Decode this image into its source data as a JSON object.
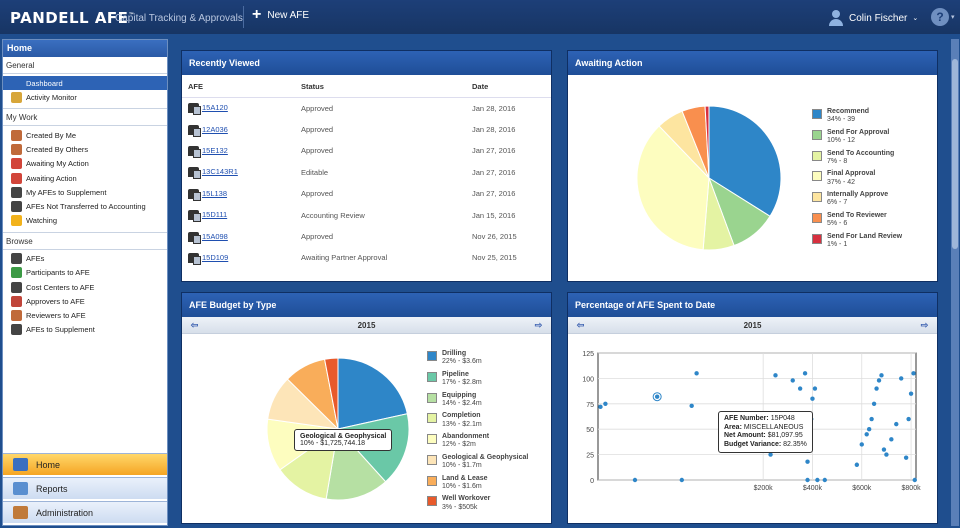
{
  "topbar": {
    "brand": "PANDELL AFE",
    "tm": "™",
    "subtitle": "Capital Tracking & Approvals",
    "new_afe": "New AFE",
    "user": "Colin Fischer",
    "help": "?"
  },
  "sidebar": {
    "title": "Home",
    "general_label": "General",
    "general": [
      {
        "label": "Dashboard",
        "icon": "dashboard-icon",
        "color": "#2d63b5"
      },
      {
        "label": "Activity Monitor",
        "icon": "activity-monitor-icon",
        "color": "#d7a63a"
      }
    ],
    "mywork_label": "My Work",
    "mywork": [
      {
        "label": "Created By Me",
        "icon": "user-icon",
        "color": "#c06a3a"
      },
      {
        "label": "Created By Others",
        "icon": "users-icon",
        "color": "#c06a3a"
      },
      {
        "label": "Awaiting My Action",
        "icon": "clock-icon",
        "color": "#d2453a"
      },
      {
        "label": "Awaiting Action",
        "icon": "clock-icon",
        "color": "#d2453a"
      },
      {
        "label": "My AFEs to Supplement",
        "icon": "afe-document-icon",
        "color": "#444"
      },
      {
        "label": "AFEs Not Transferred to Accounting",
        "icon": "afe-document-icon",
        "color": "#444"
      },
      {
        "label": "Watching",
        "icon": "star-icon",
        "color": "#f2b21b"
      }
    ],
    "browse_label": "Browse",
    "browse": [
      {
        "label": "AFEs",
        "icon": "afe-document-icon",
        "color": "#444"
      },
      {
        "label": "Participants to AFE",
        "icon": "participant-icon",
        "color": "#3c9a45"
      },
      {
        "label": "Cost Centers to AFE",
        "icon": "cost-center-icon",
        "color": "#444"
      },
      {
        "label": "Approvers to AFE",
        "icon": "approver-icon",
        "color": "#c0453a"
      },
      {
        "label": "Reviewers to AFE",
        "icon": "reviewer-icon",
        "color": "#c06a3a"
      },
      {
        "label": "AFEs to Supplement",
        "icon": "afe-document-icon",
        "color": "#444"
      }
    ],
    "nav": [
      {
        "label": "Home",
        "icon": "home-icon",
        "active": true
      },
      {
        "label": "Reports",
        "icon": "reports-icon",
        "active": false
      },
      {
        "label": "Administration",
        "icon": "administration-icon",
        "active": false
      }
    ]
  },
  "recent": {
    "title": "Recently Viewed",
    "headers": [
      "AFE",
      "Status",
      "Date"
    ],
    "rows": [
      {
        "afe": "15A120",
        "status": "Approved",
        "date": "Jan 28, 2016"
      },
      {
        "afe": "12A036",
        "status": "Approved",
        "date": "Jan 28, 2016"
      },
      {
        "afe": "15E132",
        "status": "Approved",
        "date": "Jan 27, 2016"
      },
      {
        "afe": "13C143R1",
        "status": "Editable",
        "date": "Jan 27, 2016"
      },
      {
        "afe": "15L138",
        "status": "Approved",
        "date": "Jan 27, 2016"
      },
      {
        "afe": "15D111",
        "status": "Accounting Review",
        "date": "Jan 15, 2016"
      },
      {
        "afe": "15A098",
        "status": "Approved",
        "date": "Nov 26, 2015"
      },
      {
        "afe": "15D109",
        "status": "Awaiting Partner Approval",
        "date": "Nov 25, 2015"
      }
    ]
  },
  "awaiting": {
    "title": "Awaiting Action"
  },
  "budget": {
    "title": "AFE Budget by Type",
    "year": "2015",
    "tooltip_title": "Geological & Geophysical",
    "tooltip_value": "10% - $1,725,744.18"
  },
  "percent": {
    "title": "Percentage of AFE Spent to Date",
    "year": "2015",
    "tooltip": {
      "afe_label": "AFE Number:",
      "afe_value": "15P048",
      "area_label": "Area:",
      "area_value": "MISCELLANEOUS",
      "net_label": "Net Amount:",
      "net_value": "$81,097.95",
      "var_label": "Budget Variance:",
      "var_value": "82.35%"
    }
  },
  "chart_data": [
    {
      "type": "pie",
      "title": "Awaiting Action",
      "slices": [
        {
          "name": "Recommend",
          "label": "34% - 39",
          "value": 39,
          "pct": 34,
          "color": "#2e86c8"
        },
        {
          "name": "Send For Approval",
          "label": "10% - 12",
          "value": 12,
          "pct": 10,
          "color": "#9ad48f"
        },
        {
          "name": "Send To Accounting",
          "label": "7% - 8",
          "value": 8,
          "pct": 7,
          "color": "#e4f3a3"
        },
        {
          "name": "Final Approval",
          "label": "37% - 42",
          "value": 42,
          "pct": 37,
          "color": "#fdfdbf"
        },
        {
          "name": "Internally Approve",
          "label": "6% - 7",
          "value": 7,
          "pct": 6,
          "color": "#fde5a0"
        },
        {
          "name": "Send To Reviewer",
          "label": "5% - 6",
          "value": 6,
          "pct": 5,
          "color": "#f98f4e"
        },
        {
          "name": "Send For Land Review",
          "label": "1% - 1",
          "value": 1,
          "pct": 1,
          "color": "#d7303f"
        }
      ]
    },
    {
      "type": "pie",
      "title": "AFE Budget by Type",
      "slices": [
        {
          "name": "Drilling",
          "label": "22% - $3.6m",
          "value": 3.6,
          "pct": 22,
          "color": "#2e86c8"
        },
        {
          "name": "Pipeline",
          "label": "17% - $2.8m",
          "value": 2.8,
          "pct": 17,
          "color": "#6ac8a7"
        },
        {
          "name": "Equipping",
          "label": "14% - $2.4m",
          "value": 2.4,
          "pct": 14,
          "color": "#b6e0a3"
        },
        {
          "name": "Completion",
          "label": "13% - $2.1m",
          "value": 2.1,
          "pct": 13,
          "color": "#e4f3a3"
        },
        {
          "name": "Abandonment",
          "label": "12% - $2m",
          "value": 2,
          "pct": 12,
          "color": "#fdfdbf"
        },
        {
          "name": "Geological & Geophysical",
          "label": "10% - $1.7m",
          "value": 1.7,
          "pct": 10,
          "color": "#fde5b8"
        },
        {
          "name": "Land & Lease",
          "label": "10% - $1.6m",
          "value": 1.6,
          "pct": 10,
          "color": "#f9ad5a"
        },
        {
          "name": "Well Workover",
          "label": "3% - $505k",
          "value": 0.505,
          "pct": 3,
          "color": "#e85a2b"
        }
      ]
    },
    {
      "type": "scatter",
      "title": "Percentage of AFE Spent to Date",
      "yticks": [
        "0",
        "25",
        "50",
        "75",
        "100",
        "125"
      ],
      "xticks": [
        "$200k",
        "$400k",
        "$600k",
        "$800k"
      ],
      "ylim": [
        0,
        125
      ],
      "xlim": [
        -470,
        820
      ],
      "points": [
        {
          "x": -460,
          "y": 72
        },
        {
          "x": -440,
          "y": 75
        },
        {
          "x": -320,
          "y": 0
        },
        {
          "x": -230,
          "y": 82
        },
        {
          "x": -130,
          "y": 0
        },
        {
          "x": -90,
          "y": 73
        },
        {
          "x": -70,
          "y": 105
        },
        {
          "x": 230,
          "y": 25
        },
        {
          "x": 250,
          "y": 103
        },
        {
          "x": 320,
          "y": 98
        },
        {
          "x": 350,
          "y": 90
        },
        {
          "x": 370,
          "y": 105
        },
        {
          "x": 380,
          "y": 0
        },
        {
          "x": 380,
          "y": 18
        },
        {
          "x": 390,
          "y": 38
        },
        {
          "x": 395,
          "y": 60
        },
        {
          "x": 400,
          "y": 80
        },
        {
          "x": 410,
          "y": 90
        },
        {
          "x": 420,
          "y": 0
        },
        {
          "x": 450,
          "y": 0
        },
        {
          "x": 580,
          "y": 15
        },
        {
          "x": 600,
          "y": 35
        },
        {
          "x": 620,
          "y": 45
        },
        {
          "x": 630,
          "y": 50
        },
        {
          "x": 640,
          "y": 60
        },
        {
          "x": 650,
          "y": 75
        },
        {
          "x": 660,
          "y": 90
        },
        {
          "x": 670,
          "y": 98
        },
        {
          "x": 680,
          "y": 103
        },
        {
          "x": 690,
          "y": 30
        },
        {
          "x": 700,
          "y": 25
        },
        {
          "x": 720,
          "y": 40
        },
        {
          "x": 740,
          "y": 55
        },
        {
          "x": 760,
          "y": 100
        },
        {
          "x": 780,
          "y": 22
        },
        {
          "x": 790,
          "y": 60
        },
        {
          "x": 800,
          "y": 85
        },
        {
          "x": 810,
          "y": 105
        },
        {
          "x": 815,
          "y": 0
        }
      ]
    }
  ]
}
